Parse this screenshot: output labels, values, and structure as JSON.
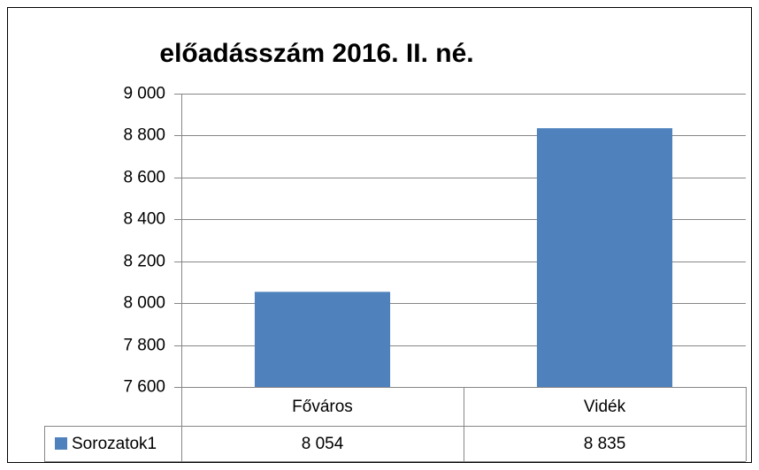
{
  "chart_data": {
    "type": "bar",
    "title": "előadásszám 2016. II. né.",
    "categories": [
      "Főváros",
      "Vidék"
    ],
    "series": [
      {
        "name": "Sorozatok1",
        "color": "#4f81bd",
        "values": [
          8054,
          8835
        ],
        "value_labels": [
          "8 054",
          "8 835"
        ]
      }
    ],
    "ylim": [
      7600,
      9000
    ],
    "yticks": [
      {
        "value": 7600,
        "label": "7 600"
      },
      {
        "value": 7800,
        "label": "7 800"
      },
      {
        "value": 8000,
        "label": "8 000"
      },
      {
        "value": 8200,
        "label": "8 200"
      },
      {
        "value": 8400,
        "label": "8 400"
      },
      {
        "value": 8600,
        "label": "8 600"
      },
      {
        "value": 8800,
        "label": "8 800"
      },
      {
        "value": 9000,
        "label": "9 000"
      }
    ],
    "grid": true
  }
}
